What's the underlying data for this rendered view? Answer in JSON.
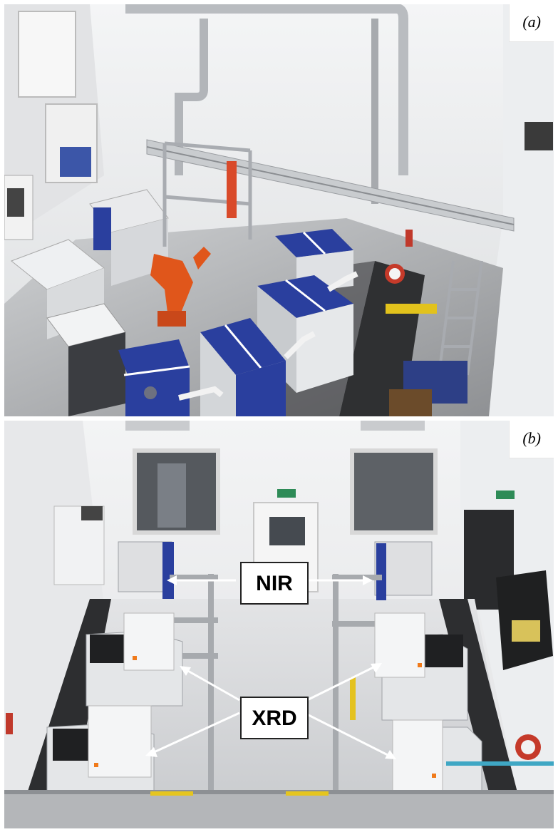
{
  "panels": [
    {
      "label": "(a)"
    },
    {
      "label": "(b)"
    }
  ],
  "callouts": {
    "nir": "NIR",
    "xrd": "XRD"
  },
  "colors": {
    "robot_arm": "#e0561b",
    "cabinet_blue": "#2a3f9e",
    "wall": "#ecedef",
    "floor_dark": "#2b2b2b"
  }
}
